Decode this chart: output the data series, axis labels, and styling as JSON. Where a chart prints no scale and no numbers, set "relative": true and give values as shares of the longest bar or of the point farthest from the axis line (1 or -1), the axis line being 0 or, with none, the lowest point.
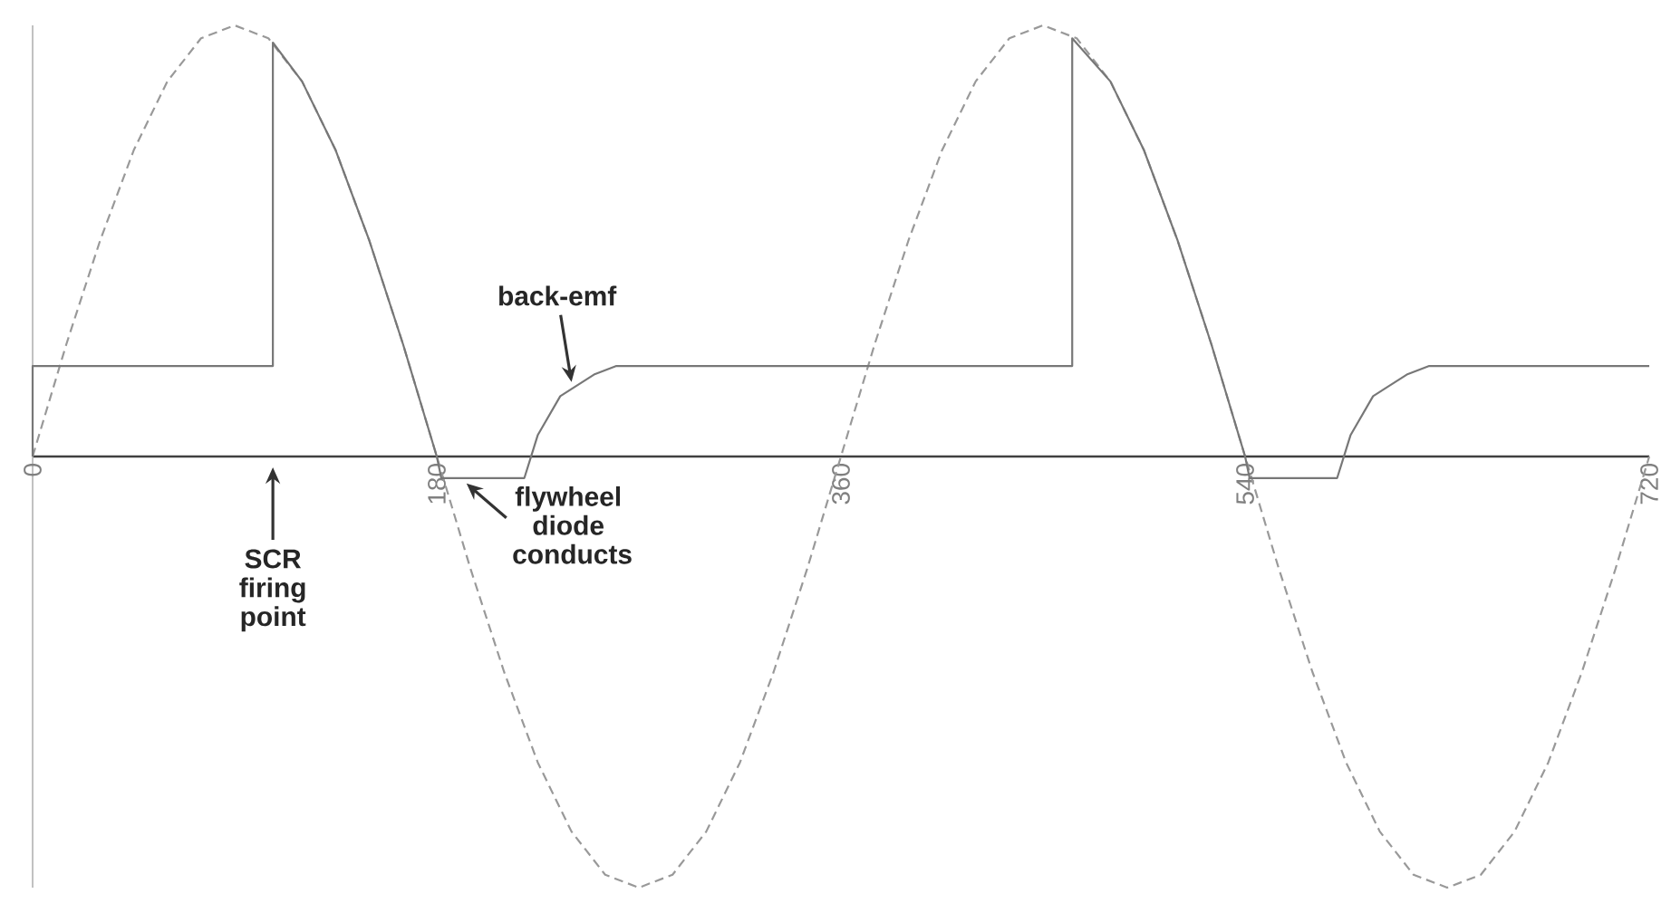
{
  "chart_data": {
    "type": "line",
    "relative": true,
    "grid": false,
    "marker": "none",
    "tick_labels": "x",
    "xlim": [
      0,
      720
    ],
    "xticks": [
      0,
      180,
      360,
      540,
      720
    ],
    "annotations": [
      "SCR firing point",
      {
        "text": "flywheel diode conducts",
        "x": 190,
        "y": -0.05
      },
      {
        "text": "back-emf",
        "x": 240,
        "y": 0.16
      }
    ],
    "series": [
      {
        "color": "#999999",
        "line_style": "dashed",
        "x": [
          0,
          15,
          30,
          45,
          60,
          75,
          90,
          105,
          120,
          135,
          150,
          165,
          180,
          195,
          210,
          225,
          240,
          255,
          270,
          285,
          300,
          315,
          330,
          345,
          360,
          375,
          390,
          405,
          420,
          435,
          450,
          465,
          480,
          495,
          510,
          525,
          540,
          555,
          570,
          585,
          600,
          615,
          630,
          645,
          660,
          675,
          690,
          705,
          720
        ],
        "values": [
          0,
          0.26,
          0.5,
          0.71,
          0.87,
          0.97,
          1,
          0.97,
          0.87,
          0.71,
          0.5,
          0.26,
          0,
          -0.26,
          -0.5,
          -0.71,
          -0.87,
          -0.97,
          -1,
          -0.97,
          -0.87,
          -0.71,
          -0.5,
          -0.26,
          0,
          0.26,
          0.5,
          0.71,
          0.87,
          0.97,
          1,
          0.97,
          0.87,
          0.71,
          0.5,
          0.26,
          0,
          -0.26,
          -0.5,
          -0.71,
          -0.87,
          -0.97,
          -1,
          -0.97,
          -0.87,
          -0.71,
          -0.5,
          -0.26,
          0
        ]
      },
      {
        "color": "#777777",
        "line_style": "solid",
        "x": [
          0,
          0,
          107,
          107,
          120,
          135,
          150,
          165,
          180,
          182,
          219,
          225,
          235,
          250,
          260,
          463,
          463,
          480,
          495,
          510,
          525,
          540,
          542,
          581,
          587,
          597,
          612,
          622,
          720
        ],
        "values": [
          0,
          0.21,
          0.21,
          0.96,
          0.87,
          0.71,
          0.5,
          0.26,
          0,
          -0.05,
          -0.05,
          0.05,
          0.14,
          0.19,
          0.21,
          0.21,
          0.97,
          0.87,
          0.71,
          0.5,
          0.26,
          0,
          -0.05,
          -0.05,
          0.05,
          0.14,
          0.19,
          0.21,
          0.21
        ]
      }
    ]
  }
}
